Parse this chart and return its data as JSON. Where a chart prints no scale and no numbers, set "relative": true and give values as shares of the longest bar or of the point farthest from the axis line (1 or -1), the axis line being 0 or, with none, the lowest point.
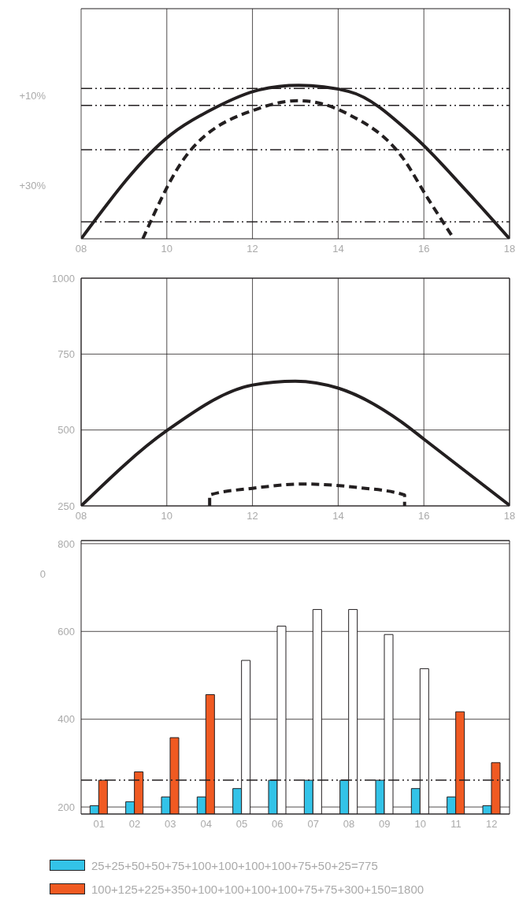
{
  "chart_data": [
    {
      "type": "line",
      "relative": true,
      "xlim": [
        8,
        18
      ],
      "xticks": [
        {
          "value": 8,
          "label": "08"
        },
        {
          "value": 10,
          "label": "10"
        },
        {
          "value": 12,
          "label": "12"
        },
        {
          "value": 14,
          "label": "14"
        },
        {
          "value": 16,
          "label": "16"
        },
        {
          "value": 18,
          "label": "18"
        }
      ],
      "grid": "x",
      "annotations": [
        "+10%",
        "+30%"
      ],
      "ref_lines": [
        {
          "axis": "y",
          "value": 0.98,
          "line_style": "dashed"
        },
        {
          "axis": "y",
          "value": 0.87,
          "line_style": "dashed"
        },
        {
          "axis": "y",
          "value": 0.58,
          "line_style": "dashed"
        },
        {
          "axis": "y",
          "value": 0.11,
          "line_style": "dashed"
        }
      ],
      "series": [
        {
          "x": [
            8,
            10.1,
            11.1,
            12.15,
            13.08,
            14.25,
            15.8,
            17,
            18
          ],
          "values": [
            0,
            0.68,
            0.85,
            0.97,
            1,
            0.96,
            0.66,
            0.31,
            0
          ],
          "color": "#231f20",
          "line_style": "solid"
        },
        {
          "x": [
            9.44,
            10.45,
            12.15,
            13.08,
            14.25,
            15.5,
            16.1,
            16.7
          ],
          "values": [
            0,
            0.54,
            0.85,
            0.9,
            0.81,
            0.53,
            0.26,
            0
          ],
          "color": "#231f20",
          "line_style": "dashed"
        }
      ]
    },
    {
      "type": "line",
      "xlim": [
        8,
        18
      ],
      "xticks": [
        {
          "value": 8,
          "label": "08"
        },
        {
          "value": 10,
          "label": "10"
        },
        {
          "value": 12,
          "label": "12"
        },
        {
          "value": 14,
          "label": "14"
        },
        {
          "value": 16,
          "label": "16"
        },
        {
          "value": 18,
          "label": "18"
        }
      ],
      "ylim": [
        250,
        1000
      ],
      "yticks": [
        250,
        500,
        750,
        1000
      ],
      "grid": true,
      "series": [
        {
          "x": [
            8,
            10,
            12,
            13,
            14,
            15.6,
            16,
            18
          ],
          "values": [
            250,
            498,
            648,
            661,
            638,
            514,
            470,
            252
          ],
          "color": "#231f20",
          "line_style": "solid"
        },
        {
          "x": [
            11,
            11,
            12,
            13.2,
            14.5,
            15.55,
            15.55
          ],
          "values": [
            250,
            286,
            308,
            322,
            310,
            286,
            250
          ],
          "color": "#231f20",
          "line_style": "dashed"
        }
      ]
    },
    {
      "type": "bar",
      "categories": [
        "01",
        "02",
        "03",
        "04",
        "05",
        "06",
        "07",
        "08",
        "09",
        "10",
        "11",
        "12"
      ],
      "ylim": [
        184,
        807
      ],
      "yticks": [
        200,
        400,
        600,
        800
      ],
      "grid": "y",
      "legend": "bottom",
      "annotations": [
        "0"
      ],
      "ref_lines": [
        {
          "axis": "y",
          "value": 261,
          "line_style": "dashed"
        }
      ],
      "series": [
        {
          "name": "25+25+50+50+75+100+100+100+100+75+50+25=775",
          "color": "#33c3e8",
          "values": [
            203,
            212,
            223,
            223,
            242,
            261,
            261,
            261,
            261,
            242,
            223,
            203
          ]
        },
        {
          "name": "100+125+225+350+100+100+100+100+75+75+300+150=1800",
          "color": "#f05a22",
          "colors": [
            "#f05a22",
            "#f05a22",
            "#f05a22",
            "#f05a22",
            "#ffffff",
            "#ffffff",
            "#ffffff",
            "#ffffff",
            "#ffffff",
            "#ffffff",
            "#f05a22",
            "#f05a22"
          ],
          "values": [
            261,
            280,
            358,
            456,
            534,
            612,
            650,
            650,
            593,
            515,
            417,
            301
          ]
        }
      ]
    }
  ]
}
